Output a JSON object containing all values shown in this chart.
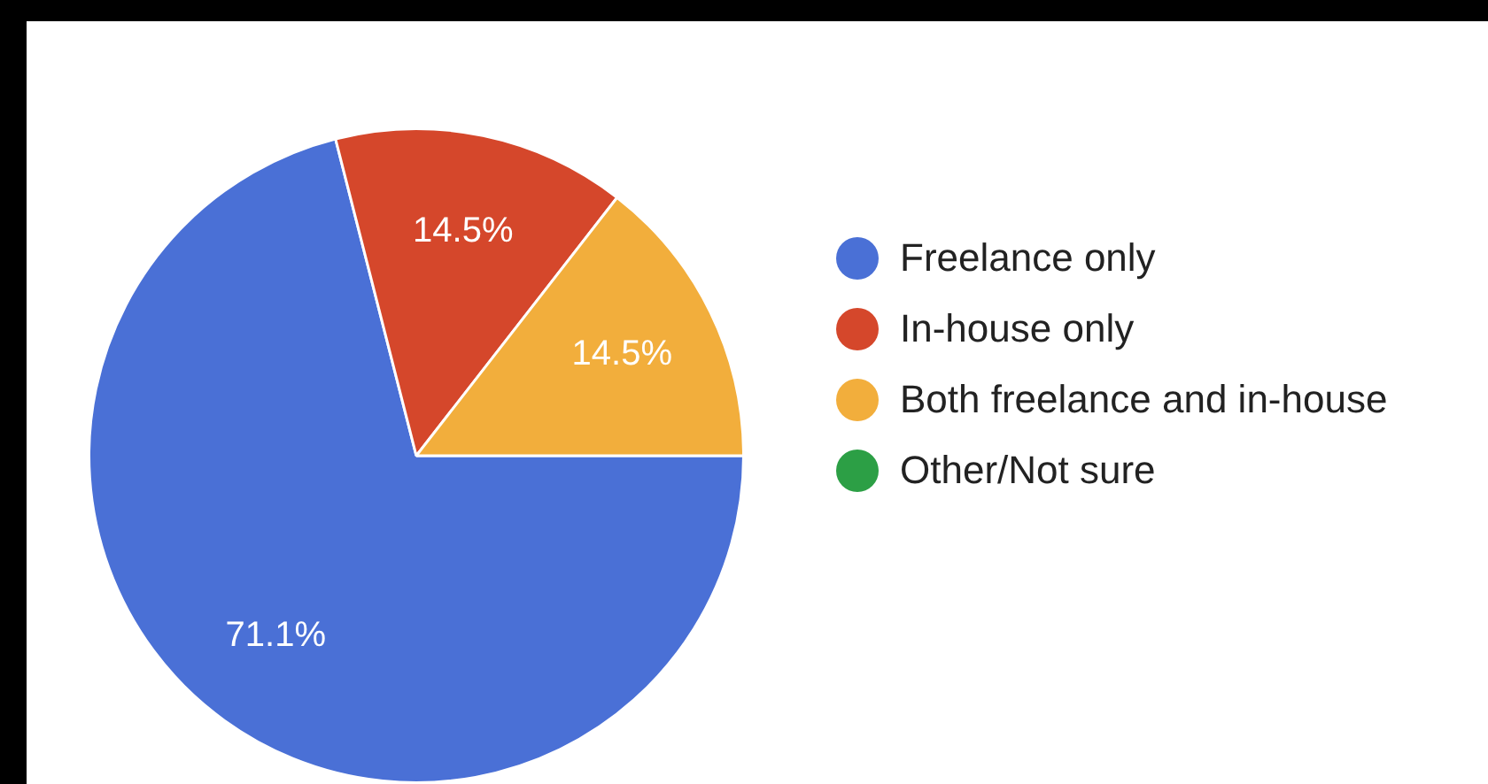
{
  "chart_data": {
    "type": "pie",
    "categories": [
      "Freelance only",
      "In-house only",
      "Both freelance and in-house",
      "Other/Not sure"
    ],
    "values": [
      71.1,
      14.5,
      14.5,
      0
    ],
    "colors": [
      "#4a70d6",
      "#d5472b",
      "#f2ae3c",
      "#2c9f45"
    ],
    "value_labels": [
      "71.1%",
      "14.5%",
      "14.5%",
      null
    ],
    "legend": "right"
  }
}
